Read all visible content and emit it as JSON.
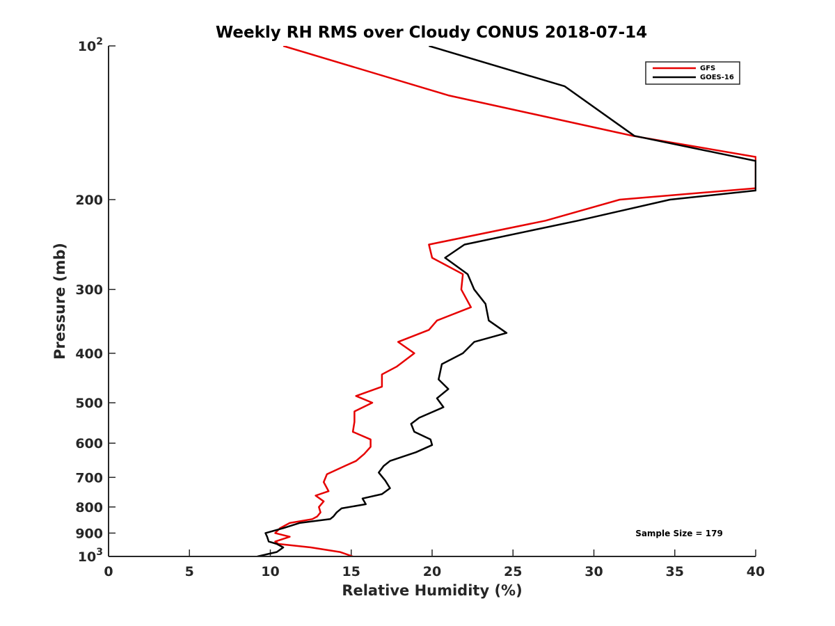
{
  "chart_data": {
    "type": "line",
    "title": "Weekly RH RMS over Cloudy CONUS 2018-07-14",
    "xlabel": "Relative Humidity (%)",
    "ylabel": "Pressure (mb)",
    "xlim": [
      0,
      40
    ],
    "ylim": [
      100,
      1000
    ],
    "y_scale": "log",
    "y_reversed": true,
    "grid": false,
    "legend_position": "top-right",
    "x_ticks": [
      0,
      5,
      10,
      15,
      20,
      25,
      30,
      35,
      40
    ],
    "y_ticks": [
      {
        "value": 100,
        "base": "10",
        "exp": "2"
      },
      {
        "value": 200,
        "label": "200"
      },
      {
        "value": 300,
        "label": "300"
      },
      {
        "value": 400,
        "label": "400"
      },
      {
        "value": 500,
        "label": "500"
      },
      {
        "value": 600,
        "label": "600"
      },
      {
        "value": 700,
        "label": "700"
      },
      {
        "value": 800,
        "label": "800"
      },
      {
        "value": 900,
        "label": "900"
      },
      {
        "value": 1000,
        "base": "10",
        "exp": "3"
      }
    ],
    "series": [
      {
        "name": "GFS",
        "color": "#e60000",
        "points": [
          [
            10.8,
            100
          ],
          [
            21.0,
            125
          ],
          [
            32.4,
            150
          ],
          [
            40.0,
            165
          ],
          [
            40.0,
            190
          ],
          [
            31.6,
            200
          ],
          [
            27.0,
            220
          ],
          [
            19.8,
            245
          ],
          [
            20.0,
            260
          ],
          [
            21.9,
            280
          ],
          [
            21.8,
            300
          ],
          [
            22.4,
            325
          ],
          [
            20.3,
            345
          ],
          [
            19.8,
            360
          ],
          [
            17.9,
            380
          ],
          [
            18.9,
            400
          ],
          [
            17.8,
            425
          ],
          [
            16.9,
            440
          ],
          [
            16.9,
            465
          ],
          [
            15.3,
            485
          ],
          [
            16.3,
            500
          ],
          [
            15.2,
            520
          ],
          [
            15.2,
            545
          ],
          [
            15.1,
            570
          ],
          [
            16.2,
            590
          ],
          [
            16.2,
            610
          ],
          [
            15.8,
            630
          ],
          [
            15.3,
            650
          ],
          [
            14.6,
            665
          ],
          [
            13.5,
            690
          ],
          [
            13.3,
            715
          ],
          [
            13.6,
            745
          ],
          [
            12.8,
            760
          ],
          [
            13.3,
            780
          ],
          [
            13.0,
            800
          ],
          [
            13.1,
            820
          ],
          [
            12.9,
            835
          ],
          [
            12.6,
            845
          ],
          [
            11.2,
            860
          ],
          [
            10.6,
            880
          ],
          [
            10.3,
            900
          ],
          [
            11.2,
            915
          ],
          [
            10.3,
            935
          ],
          [
            10.5,
            945
          ],
          [
            12.5,
            960
          ],
          [
            14.3,
            980
          ],
          [
            15.1,
            1000
          ]
        ]
      },
      {
        "name": "GOES-16",
        "color": "#000000",
        "points": [
          [
            19.8,
            100
          ],
          [
            28.2,
            120
          ],
          [
            32.5,
            150
          ],
          [
            40.0,
            168
          ],
          [
            40.0,
            192
          ],
          [
            34.7,
            200
          ],
          [
            29.0,
            220
          ],
          [
            22.0,
            245
          ],
          [
            20.8,
            260
          ],
          [
            22.2,
            280
          ],
          [
            22.6,
            300
          ],
          [
            23.3,
            320
          ],
          [
            23.5,
            345
          ],
          [
            24.6,
            365
          ],
          [
            22.6,
            380
          ],
          [
            21.9,
            400
          ],
          [
            20.6,
            420
          ],
          [
            20.4,
            450
          ],
          [
            21.0,
            470
          ],
          [
            20.3,
            490
          ],
          [
            20.7,
            510
          ],
          [
            19.2,
            535
          ],
          [
            18.7,
            550
          ],
          [
            18.9,
            570
          ],
          [
            19.9,
            590
          ],
          [
            20.0,
            605
          ],
          [
            19.0,
            625
          ],
          [
            17.4,
            650
          ],
          [
            17.0,
            665
          ],
          [
            16.7,
            685
          ],
          [
            17.1,
            710
          ],
          [
            17.4,
            735
          ],
          [
            16.9,
            755
          ],
          [
            15.7,
            770
          ],
          [
            15.9,
            790
          ],
          [
            14.4,
            805
          ],
          [
            14.1,
            820
          ],
          [
            13.9,
            835
          ],
          [
            13.7,
            845
          ],
          [
            11.8,
            860
          ],
          [
            10.8,
            880
          ],
          [
            9.7,
            900
          ],
          [
            9.8,
            915
          ],
          [
            9.9,
            935
          ],
          [
            10.4,
            945
          ],
          [
            10.8,
            960
          ],
          [
            10.4,
            980
          ],
          [
            9.2,
            1000
          ]
        ]
      }
    ],
    "annotation": "Sample Size = 179"
  }
}
